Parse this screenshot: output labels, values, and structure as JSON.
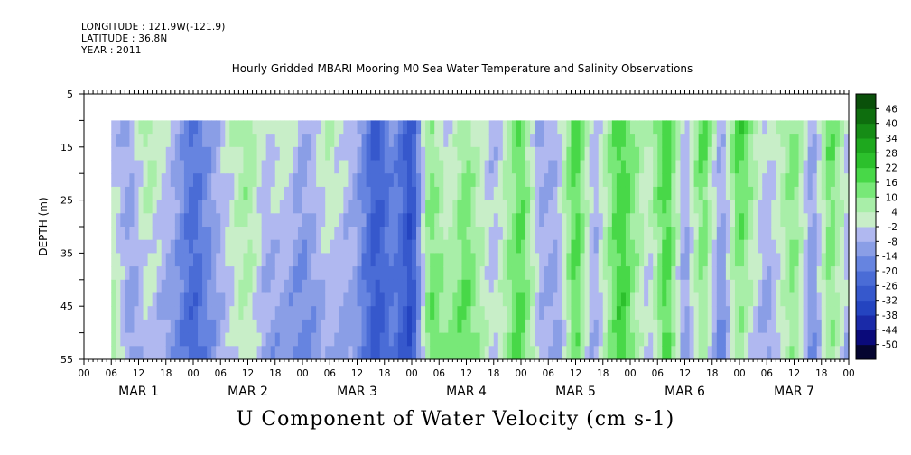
{
  "header": {
    "longitude": "LONGITUDE : 121.9W(-121.9)",
    "latitude": "LATITUDE : 36.8N",
    "year": "YEAR : 2011"
  },
  "chart_data": {
    "type": "heatmap",
    "title": "Hourly Gridded MBARI Mooring M0 Sea Water Temperature and Salinity Observations",
    "variable_label": "U Component of Water Velocity (cm s-1)",
    "ylabel": "DEPTH (m)",
    "ylim": [
      5,
      55
    ],
    "y_reversed": true,
    "y_ticks": [
      5,
      15,
      25,
      35,
      45,
      55
    ],
    "data_depth_range": [
      10,
      55
    ],
    "x_hour_tick_labels": [
      "00",
      "06",
      "12",
      "18",
      "00",
      "06",
      "12",
      "18",
      "00",
      "06",
      "12",
      "18",
      "00",
      "06",
      "12",
      "18",
      "00",
      "06",
      "12",
      "18",
      "00",
      "06",
      "12",
      "18",
      "00",
      "06",
      "12",
      "18",
      "00"
    ],
    "x_day_labels": [
      "MAR 1",
      "MAR 2",
      "MAR 3",
      "MAR 4",
      "MAR 5",
      "MAR 6",
      "MAR 7"
    ],
    "data_start_hour": 6,
    "data_end_hour": 168,
    "colorbar": {
      "levels": [
        -50,
        -44,
        -38,
        -32,
        -26,
        -20,
        -14,
        -8,
        -2,
        4,
        10,
        16,
        22,
        28,
        34,
        40,
        46
      ],
      "colors": [
        "#050530",
        "#0a0a7a",
        "#1a2aa8",
        "#2444c0",
        "#3658cc",
        "#4a6cd6",
        "#6684e0",
        "#8a9ee6",
        "#b0b8f0",
        "#c8eec8",
        "#a8eea8",
        "#78e878",
        "#48d848",
        "#2cc02c",
        "#1ea81e",
        "#168c16",
        "#0e6e0e",
        "#0a500a"
      ]
    },
    "u_profile_by_hour": {
      "hours": [
        6,
        10,
        14,
        20,
        24,
        30,
        36,
        40,
        44,
        48,
        54,
        60,
        64,
        68,
        72,
        76,
        80,
        84,
        90,
        96,
        100,
        104,
        108,
        112,
        118,
        124,
        128,
        132,
        136,
        140,
        144,
        150,
        156,
        160,
        164,
        168
      ],
      "surface": [
        -6,
        -8,
        8,
        -6,
        -22,
        -4,
        10,
        -4,
        6,
        -8,
        6,
        -8,
        -28,
        -14,
        -30,
        12,
        -6,
        10,
        -8,
        16,
        -10,
        -4,
        22,
        -6,
        20,
        2,
        22,
        -6,
        20,
        -8,
        22,
        -4,
        14,
        -10,
        18,
        -4
      ],
      "bottom": [
        12,
        -12,
        -4,
        -14,
        -26,
        -8,
        4,
        -10,
        -14,
        -18,
        -8,
        -12,
        -30,
        -20,
        -34,
        16,
        12,
        18,
        -2,
        20,
        -4,
        -12,
        16,
        -10,
        22,
        -6,
        20,
        -14,
        8,
        -18,
        8,
        -12,
        10,
        -16,
        10,
        -8
      ]
    }
  }
}
